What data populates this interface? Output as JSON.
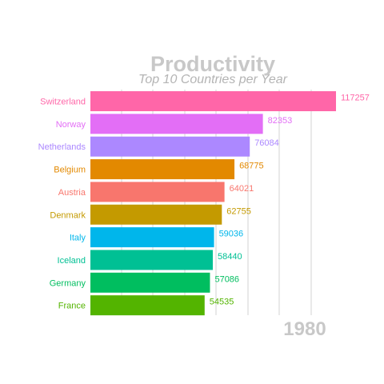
{
  "chart_data": {
    "type": "bar",
    "orientation": "horizontal",
    "title": "Productivity",
    "subtitle": "Top 10 Countries per Year",
    "year": "1980",
    "categories": [
      "Switzerland",
      "Norway",
      "Netherlands",
      "Belgium",
      "Austria",
      "Denmark",
      "Italy",
      "Iceland",
      "Germany",
      "France"
    ],
    "values": [
      117257,
      82353,
      76084,
      68775,
      64021,
      62755,
      59036,
      58440,
      57086,
      54535
    ],
    "value_labels": [
      "117257",
      "82353",
      "76084",
      "68775",
      "64021",
      "62755",
      "59036",
      "58440",
      "57086",
      "54535"
    ],
    "colors": [
      "#FF66A8",
      "#E36EF6",
      "#AC88FF",
      "#E38900",
      "#F8766D",
      "#C49A00",
      "#00B6EB",
      "#00C094",
      "#00BE5F",
      "#53B400"
    ],
    "xlim": [
      0,
      117257
    ],
    "grid": true,
    "legend": "none"
  }
}
